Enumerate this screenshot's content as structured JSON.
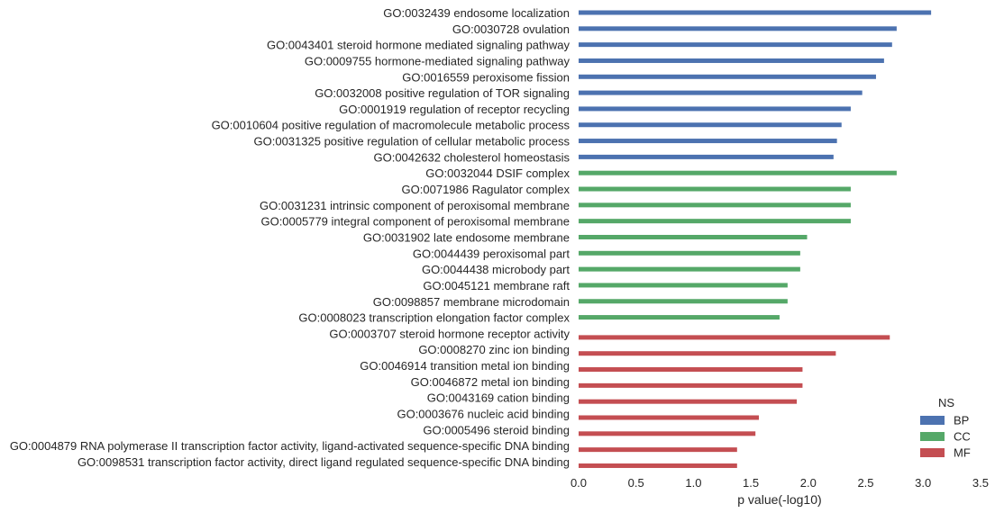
{
  "chart_data": {
    "type": "bar",
    "orientation": "horizontal",
    "xlabel": "p value(-log10)",
    "ylabel": "",
    "xlim": [
      0,
      3.5
    ],
    "xticks": [
      "0.0",
      "0.5",
      "1.0",
      "1.5",
      "2.0",
      "2.5",
      "3.0",
      "3.5"
    ],
    "grid": false,
    "legend": {
      "title": "NS",
      "placement": "lower-right",
      "entries": [
        {
          "name": "BP",
          "color": "#4c72b0"
        },
        {
          "name": "CC",
          "color": "#55a868"
        },
        {
          "name": "MF",
          "color": "#c44e52"
        }
      ]
    },
    "categories": [
      {
        "label": "GO:0032439 endosome localization",
        "ns": "BP",
        "value": 3.07
      },
      {
        "label": "GO:0030728 ovulation",
        "ns": "BP",
        "value": 2.77
      },
      {
        "label": "GO:0043401 steroid hormone mediated signaling pathway",
        "ns": "BP",
        "value": 2.73
      },
      {
        "label": "GO:0009755 hormone-mediated signaling pathway",
        "ns": "BP",
        "value": 2.66
      },
      {
        "label": "GO:0016559 peroxisome fission",
        "ns": "BP",
        "value": 2.59
      },
      {
        "label": "GO:0032008 positive regulation of TOR signaling",
        "ns": "BP",
        "value": 2.47
      },
      {
        "label": "GO:0001919 regulation of receptor recycling",
        "ns": "BP",
        "value": 2.37
      },
      {
        "label": "GO:0010604 positive regulation of macromolecule metabolic process",
        "ns": "BP",
        "value": 2.29
      },
      {
        "label": "GO:0031325 positive regulation of cellular metabolic process",
        "ns": "BP",
        "value": 2.25
      },
      {
        "label": "GO:0042632 cholesterol homeostasis",
        "ns": "BP",
        "value": 2.22
      },
      {
        "label": "GO:0032044 DSIF complex",
        "ns": "CC",
        "value": 2.77
      },
      {
        "label": "GO:0071986 Ragulator complex",
        "ns": "CC",
        "value": 2.37
      },
      {
        "label": "GO:0031231 intrinsic component of peroxisomal membrane",
        "ns": "CC",
        "value": 2.37
      },
      {
        "label": "GO:0005779 integral component of peroxisomal membrane",
        "ns": "CC",
        "value": 2.37
      },
      {
        "label": "GO:0031902 late endosome membrane",
        "ns": "CC",
        "value": 1.99
      },
      {
        "label": "GO:0044439 peroxisomal part",
        "ns": "CC",
        "value": 1.93
      },
      {
        "label": "GO:0044438 microbody part",
        "ns": "CC",
        "value": 1.93
      },
      {
        "label": "GO:0045121 membrane raft",
        "ns": "CC",
        "value": 1.82
      },
      {
        "label": "GO:0098857 membrane microdomain",
        "ns": "CC",
        "value": 1.82
      },
      {
        "label": "GO:0008023 transcription elongation factor complex",
        "ns": "CC",
        "value": 1.75
      },
      {
        "label": "GO:0003707 steroid hormone receptor activity",
        "ns": "MF",
        "value": 2.71
      },
      {
        "label": "GO:0008270 zinc ion binding",
        "ns": "MF",
        "value": 2.24
      },
      {
        "label": "GO:0046914 transition metal ion binding",
        "ns": "MF",
        "value": 1.95
      },
      {
        "label": "GO:0046872 metal ion binding",
        "ns": "MF",
        "value": 1.95
      },
      {
        "label": "GO:0043169 cation binding",
        "ns": "MF",
        "value": 1.9
      },
      {
        "label": "GO:0003676 nucleic acid binding",
        "ns": "MF",
        "value": 1.57
      },
      {
        "label": "GO:0005496 steroid binding",
        "ns": "MF",
        "value": 1.54
      },
      {
        "label": "GO:0004879 RNA polymerase II transcription factor activity, ligand-activated sequence-specific DNA binding",
        "ns": "MF",
        "value": 1.38
      },
      {
        "label": "GO:0098531 transcription factor activity, direct ligand regulated sequence-specific DNA binding",
        "ns": "MF",
        "value": 1.38
      }
    ]
  }
}
